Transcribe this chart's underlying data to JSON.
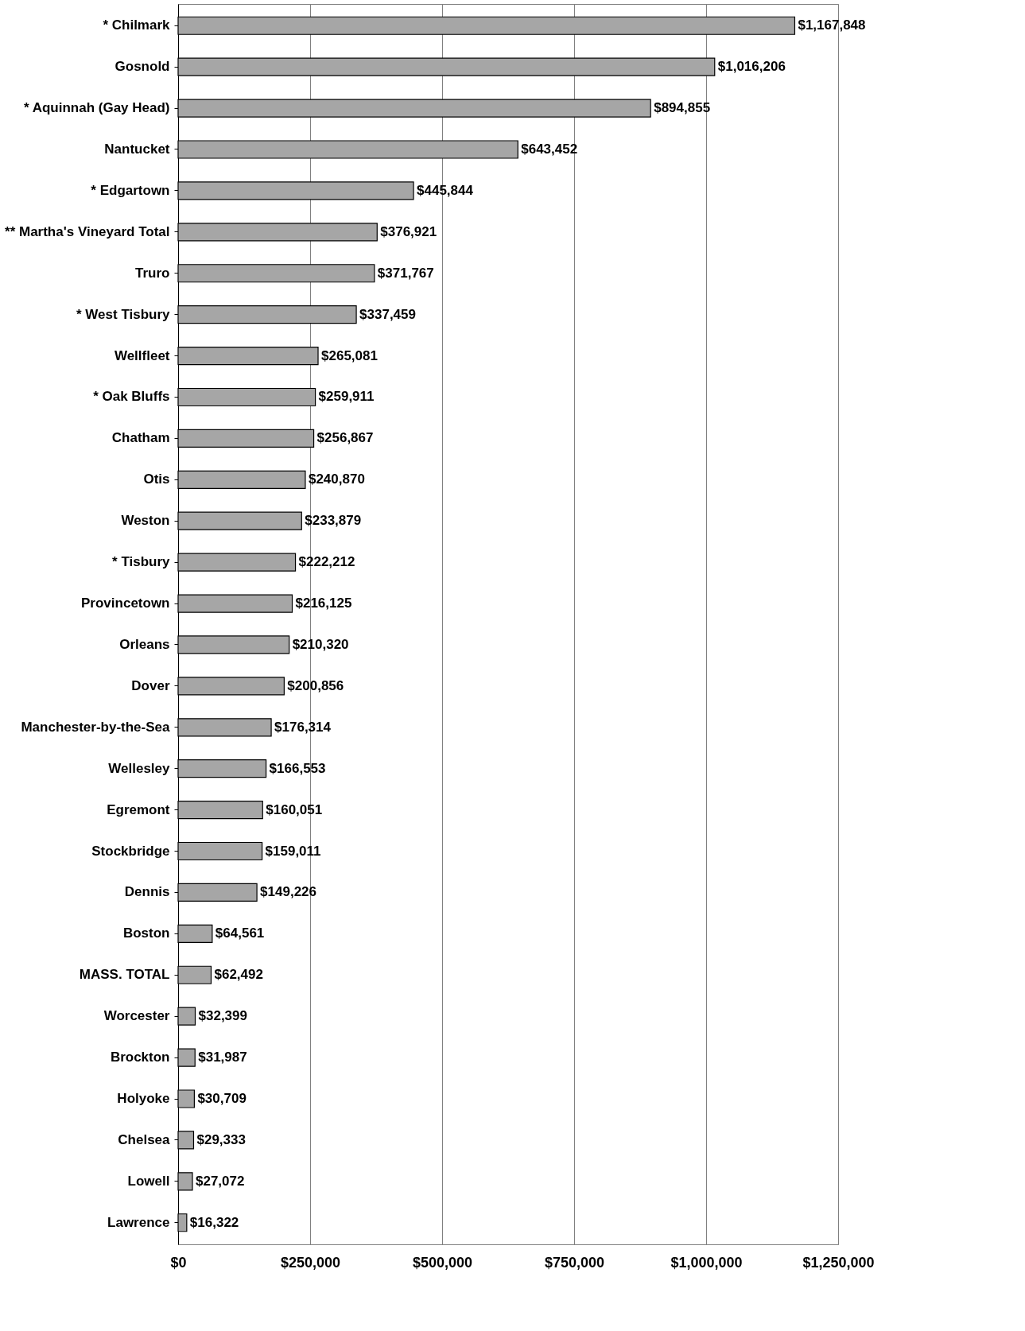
{
  "chart_data": {
    "type": "bar",
    "orientation": "horizontal",
    "categories": [
      "* Chilmark",
      "Gosnold",
      "* Aquinnah (Gay Head)",
      "Nantucket",
      "* Edgartown",
      "** Martha's Vineyard Total",
      "Truro",
      "* West Tisbury",
      "Wellfleet",
      "* Oak Bluffs",
      "Chatham",
      "Otis",
      "Weston",
      "* Tisbury",
      "Provincetown",
      "Orleans",
      "Dover",
      "Manchester-by-the-Sea",
      "Wellesley",
      "Egremont",
      "Stockbridge",
      "Dennis",
      "Boston",
      "MASS. TOTAL",
      "Worcester",
      "Brockton",
      "Holyoke",
      "Chelsea",
      "Lowell",
      "Lawrence"
    ],
    "values": [
      1167848,
      1016206,
      894855,
      643452,
      445844,
      376921,
      371767,
      337459,
      265081,
      259911,
      256867,
      240870,
      233879,
      222212,
      216125,
      210320,
      200856,
      176314,
      166553,
      160051,
      159011,
      149226,
      64561,
      62492,
      32399,
      31987,
      30709,
      29333,
      27072,
      16322
    ],
    "value_labels": [
      "$1,167,848",
      "$1,016,206",
      "$894,855",
      "$643,452",
      "$445,844",
      "$376,921",
      "$371,767",
      "$337,459",
      "$265,081",
      "$259,911",
      "$256,867",
      "$240,870",
      "$233,879",
      "$222,212",
      "$216,125",
      "$210,320",
      "$200,856",
      "$176,314",
      "$166,553",
      "$160,051",
      "$159,011",
      "$149,226",
      "$64,561",
      "$62,492",
      "$32,399",
      "$31,987",
      "$30,709",
      "$29,333",
      "$27,072",
      "$16,322"
    ],
    "color": "#a6a6a6",
    "xlim": [
      0,
      1250000
    ],
    "xticks": [
      {
        "value": 0,
        "label": "$0"
      },
      {
        "value": 250000,
        "label": "$250,000"
      },
      {
        "value": 500000,
        "label": "$500,000"
      },
      {
        "value": 750000,
        "label": "$750,000"
      },
      {
        "value": 1000000,
        "label": "$1,000,000"
      },
      {
        "value": 1250000,
        "label": "$1,250,000"
      }
    ],
    "grid": "x"
  }
}
